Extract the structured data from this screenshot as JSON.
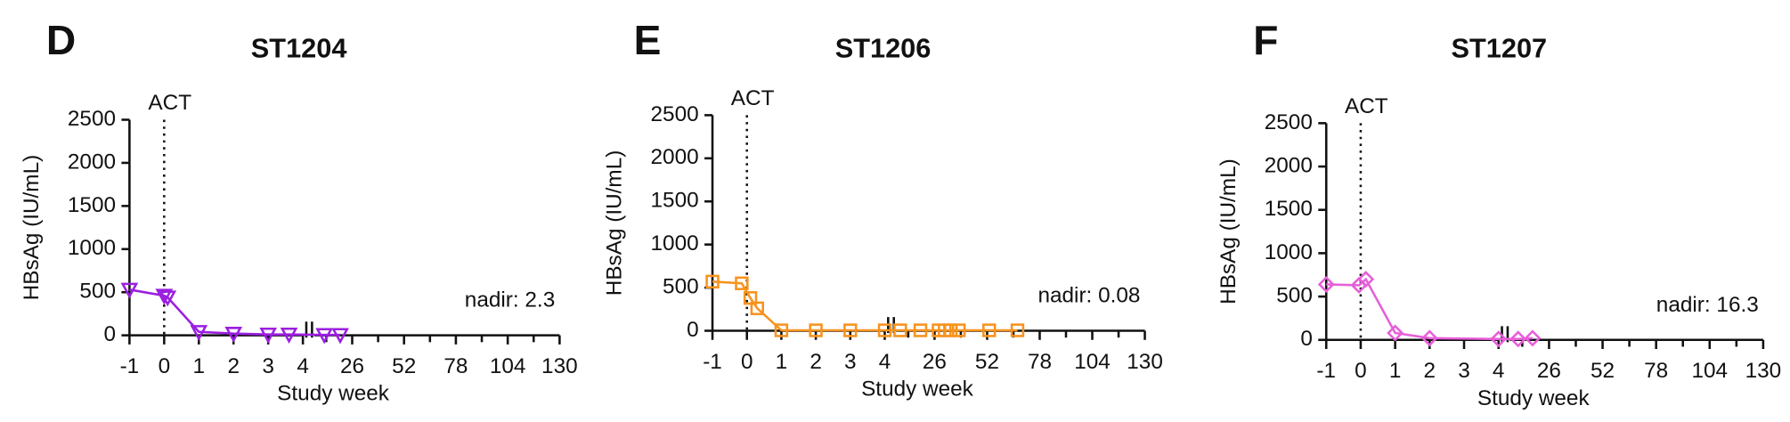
{
  "chart_data": [
    {
      "type": "line",
      "panel": "D",
      "title": "ST1204",
      "y_label": "HBsAg (IU/mL)",
      "x_label": "Study week",
      "annotation": "ACT",
      "annotation_x": 0,
      "note": "nadir:  2.3",
      "marker": "triangle-down",
      "ylim": [
        0,
        2500
      ],
      "yticks": [
        0,
        500,
        1000,
        1500,
        2000,
        2500
      ],
      "xlim": [
        -1,
        4
      ],
      "xticks": [
        -1,
        0,
        1,
        2,
        3,
        4
      ],
      "x2lim": [
        7,
        130
      ],
      "x2ticks": [
        26,
        52,
        78,
        104,
        130
      ],
      "x2minor": [
        13,
        39,
        65,
        91,
        117
      ],
      "series": [
        {
          "name": "ST1204",
          "color": "#9b1fe0",
          "x": [
            -1,
            0,
            0.1,
            1,
            2,
            3,
            3.6,
            12,
            20
          ],
          "values": [
            530,
            460,
            440,
            40,
            20,
            10,
            10,
            5,
            5
          ]
        }
      ]
    },
    {
      "type": "line",
      "panel": "E",
      "title": "ST1206",
      "y_label": "HBsAg (IU/mL)",
      "x_label": "Study week",
      "annotation": "ACT",
      "annotation_x": 0,
      "note": "nadir: 0.08",
      "marker": "square",
      "ylim": [
        0,
        2500
      ],
      "yticks": [
        0,
        500,
        1000,
        1500,
        2000,
        2500
      ],
      "xlim": [
        -1,
        4
      ],
      "xticks": [
        -1,
        0,
        1,
        2,
        3,
        4
      ],
      "x2lim": [
        7,
        130
      ],
      "x2ticks": [
        26,
        52,
        78,
        104,
        130
      ],
      "x2minor": [
        13,
        39,
        65,
        91,
        117
      ],
      "series": [
        {
          "name": "ST1206",
          "color": "#f7931e",
          "x": [
            -1,
            -0.15,
            0.1,
            0.3,
            1,
            2,
            3,
            4,
            9,
            19,
            28,
            31,
            34,
            38,
            53,
            67
          ],
          "values": [
            570,
            550,
            380,
            260,
            5,
            5,
            5,
            5,
            5,
            5,
            5,
            5,
            5,
            5,
            5,
            5
          ]
        }
      ]
    },
    {
      "type": "line",
      "panel": "F",
      "title": "ST1207",
      "y_label": "HBsAg (IU/mL)",
      "x_label": "Study week",
      "annotation": "ACT",
      "annotation_x": 0,
      "note": "nadir: 16.3",
      "marker": "diamond",
      "ylim": [
        0,
        2500
      ],
      "yticks": [
        0,
        500,
        1000,
        1500,
        2000,
        2500
      ],
      "xlim": [
        -1,
        4
      ],
      "xticks": [
        -1,
        0,
        1,
        2,
        3,
        4
      ],
      "x2lim": [
        7,
        130
      ],
      "x2ticks": [
        26,
        52,
        78,
        104,
        130
      ],
      "x2minor": [
        13,
        39,
        65,
        91,
        117
      ],
      "series": [
        {
          "name": "ST1207",
          "color": "#e65fd8",
          "x": [
            -1,
            -0.05,
            0.15,
            1,
            2,
            4,
            11,
            18
          ],
          "values": [
            640,
            630,
            700,
            80,
            20,
            10,
            10,
            20
          ]
        }
      ]
    }
  ]
}
